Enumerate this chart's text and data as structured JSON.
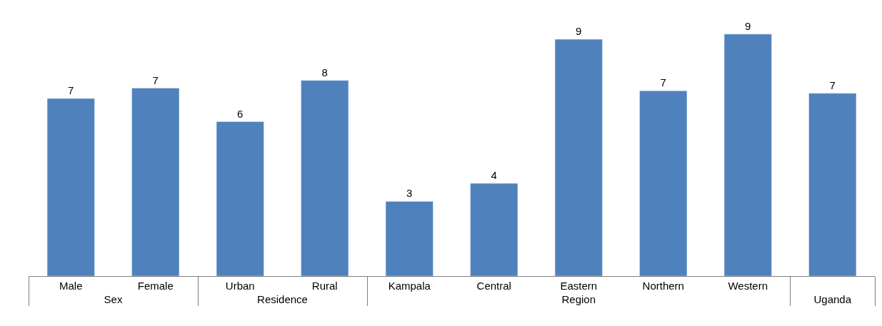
{
  "chart_data": {
    "type": "bar",
    "categories": [
      [
        "Sex",
        "Male"
      ],
      [
        null,
        "Female"
      ],
      [
        "Residence",
        "Urban"
      ],
      [
        null,
        "Rural"
      ],
      [
        "Region",
        "Kampala"
      ],
      [
        null,
        "Central"
      ],
      [
        null,
        "Eastern"
      ],
      [
        null,
        "Northern"
      ],
      [
        null,
        "Western"
      ],
      [
        "Uganda",
        null
      ]
    ],
    "values": [
      6.9,
      7.3,
      6.0,
      7.6,
      2.9,
      3.6,
      9.2,
      7.2,
      9.4,
      7.1
    ],
    "value_labels": [
      "7",
      "7",
      "6",
      "8",
      "3",
      "4",
      "9",
      "7",
      "9",
      "7"
    ],
    "color": "#4f81bd"
  }
}
